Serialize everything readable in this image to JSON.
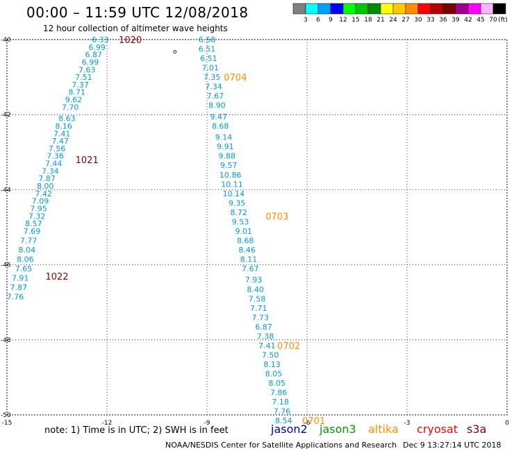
{
  "header": {
    "title": "00:00 – 11:59 UTC 12/08/2018",
    "subtitle": "12 hour collection of altimeter wave heights"
  },
  "legend": {
    "unit": "(ft)",
    "bins": [
      {
        "label": "3",
        "color": "#808080"
      },
      {
        "label": "6",
        "color": "#00ffff"
      },
      {
        "label": "9",
        "color": "#00a0ff"
      },
      {
        "label": "12",
        "color": "#0000ff"
      },
      {
        "label": "15",
        "color": "#00ff00"
      },
      {
        "label": "18",
        "color": "#00c800"
      },
      {
        "label": "21",
        "color": "#008c00"
      },
      {
        "label": "24",
        "color": "#ffff00"
      },
      {
        "label": "27",
        "color": "#ffc800"
      },
      {
        "label": "30",
        "color": "#ff8c00"
      },
      {
        "label": "33",
        "color": "#ff0000"
      },
      {
        "label": "36",
        "color": "#b40000"
      },
      {
        "label": "39",
        "color": "#780000"
      },
      {
        "label": "42",
        "color": "#a0008c"
      },
      {
        "label": "45",
        "color": "#ff00ff"
      },
      {
        "label": "70",
        "color": "#ffb4ff"
      },
      {
        "label": "",
        "color": "#000000"
      }
    ]
  },
  "axes": {
    "lon_ticks": [
      {
        "value": -15,
        "label": "-15"
      },
      {
        "value": -12,
        "label": "-12"
      },
      {
        "value": -9,
        "label": "-9"
      },
      {
        "value": -6,
        "label": "-6"
      },
      {
        "value": -3,
        "label": "-3"
      },
      {
        "value": 0,
        "label": "0"
      }
    ],
    "lat_ticks": [
      {
        "value": -40,
        "label": "-40"
      },
      {
        "value": -42,
        "label": "-42"
      },
      {
        "value": -44,
        "label": "-44"
      },
      {
        "value": -46,
        "label": "-46"
      },
      {
        "value": -48,
        "label": "-48"
      },
      {
        "value": -50,
        "label": "-50"
      }
    ],
    "lon_range": [
      -15,
      0
    ],
    "lat_range": [
      -40,
      -50
    ],
    "grid": true
  },
  "chart_data": {
    "type": "scatter",
    "x_range": [
      -15,
      0
    ],
    "y_range": [
      -50,
      -40
    ],
    "tracks": [
      {
        "color": "#0099e6",
        "points": [
          {
            "x": -12.2,
            "y": -40.0,
            "v": "6.33"
          },
          {
            "x": -12.3,
            "y": -40.2,
            "v": "6.99"
          },
          {
            "x": -12.4,
            "y": -40.4,
            "v": "6.87"
          },
          {
            "x": -12.5,
            "y": -40.6,
            "v": "6.99"
          },
          {
            "x": -12.6,
            "y": -40.8,
            "v": "7.63"
          },
          {
            "x": -12.7,
            "y": -41.0,
            "v": "7.51"
          },
          {
            "x": -12.8,
            "y": -41.2,
            "v": "7.37"
          },
          {
            "x": -12.9,
            "y": -41.4,
            "v": "8.71"
          },
          {
            "x": -13.0,
            "y": -41.6,
            "v": "9.62"
          },
          {
            "x": -13.1,
            "y": -41.8,
            "v": "7.70"
          },
          {
            "x": -13.2,
            "y": -42.1,
            "v": "8.63"
          },
          {
            "x": -13.3,
            "y": -42.3,
            "v": "8.16"
          },
          {
            "x": -13.35,
            "y": -42.5,
            "v": "7.41"
          },
          {
            "x": -13.4,
            "y": -42.7,
            "v": "7.47"
          },
          {
            "x": -13.5,
            "y": -42.9,
            "v": "7.56"
          },
          {
            "x": -13.55,
            "y": -43.1,
            "v": "7.36"
          },
          {
            "x": -13.6,
            "y": -43.3,
            "v": "7.44"
          },
          {
            "x": -13.7,
            "y": -43.5,
            "v": "7.34"
          },
          {
            "x": -13.8,
            "y": -43.7,
            "v": "7.87"
          },
          {
            "x": -13.85,
            "y": -43.9,
            "v": "8.00"
          },
          {
            "x": -13.9,
            "y": -44.1,
            "v": "7.42"
          },
          {
            "x": -14.0,
            "y": -44.3,
            "v": "7.09"
          },
          {
            "x": -14.05,
            "y": -44.5,
            "v": "7.95"
          },
          {
            "x": -14.1,
            "y": -44.7,
            "v": "7.32"
          },
          {
            "x": -14.2,
            "y": -44.9,
            "v": "8.57"
          },
          {
            "x": -14.25,
            "y": -45.1,
            "v": "7.69"
          },
          {
            "x": -14.35,
            "y": -45.35,
            "v": "7.77"
          },
          {
            "x": -14.4,
            "y": -45.6,
            "v": "8.04"
          },
          {
            "x": -14.45,
            "y": -45.85,
            "v": "8.06"
          },
          {
            "x": -14.5,
            "y": -46.1,
            "v": "7.65"
          },
          {
            "x": -14.6,
            "y": -46.35,
            "v": "7.91"
          },
          {
            "x": -14.65,
            "y": -46.6,
            "v": "7.87"
          },
          {
            "x": -14.75,
            "y": -46.85,
            "v": "7.76"
          }
        ]
      },
      {
        "color": "#0099e6",
        "points": [
          {
            "x": -9.0,
            "y": -40.0,
            "v": "6.58"
          },
          {
            "x": -9.0,
            "y": -40.25,
            "v": "6.51"
          },
          {
            "x": -8.95,
            "y": -40.5,
            "v": "6.51"
          },
          {
            "x": -8.9,
            "y": -40.75,
            "v": "7.01"
          },
          {
            "x": -8.85,
            "y": -41.0,
            "v": "7.35"
          },
          {
            "x": -8.8,
            "y": -41.25,
            "v": "7.34"
          },
          {
            "x": -8.75,
            "y": -41.5,
            "v": "7.67"
          },
          {
            "x": -8.7,
            "y": -41.75,
            "v": "8.90"
          },
          {
            "x": -8.65,
            "y": -42.05,
            "v": "9.47"
          },
          {
            "x": -8.6,
            "y": -42.3,
            "v": "8.68"
          },
          {
            "x": -8.5,
            "y": -42.6,
            "v": "9.14"
          },
          {
            "x": -8.45,
            "y": -42.85,
            "v": "9.91"
          },
          {
            "x": -8.4,
            "y": -43.1,
            "v": "9.88"
          },
          {
            "x": -8.35,
            "y": -43.35,
            "v": "9.57"
          },
          {
            "x": -8.3,
            "y": -43.6,
            "v": "10.86"
          },
          {
            "x": -8.25,
            "y": -43.85,
            "v": "10.11"
          },
          {
            "x": -8.2,
            "y": -44.1,
            "v": "10.14"
          },
          {
            "x": -8.1,
            "y": -44.35,
            "v": "9.35"
          },
          {
            "x": -8.05,
            "y": -44.6,
            "v": "8.72"
          },
          {
            "x": -8.0,
            "y": -44.85,
            "v": "9.53"
          },
          {
            "x": -7.9,
            "y": -45.1,
            "v": "9.01"
          },
          {
            "x": -7.85,
            "y": -45.35,
            "v": "8.68"
          },
          {
            "x": -7.8,
            "y": -45.6,
            "v": "8.46"
          },
          {
            "x": -7.75,
            "y": -45.85,
            "v": "8.11"
          },
          {
            "x": -7.7,
            "y": -46.1,
            "v": "7.67"
          },
          {
            "x": -7.6,
            "y": -46.4,
            "v": "7.93"
          },
          {
            "x": -7.55,
            "y": -46.65,
            "v": "8.40"
          },
          {
            "x": -7.5,
            "y": -46.9,
            "v": "7.58"
          },
          {
            "x": -7.45,
            "y": -47.15,
            "v": "7.71"
          },
          {
            "x": -7.4,
            "y": -47.4,
            "v": "7.73"
          },
          {
            "x": -7.3,
            "y": -47.65,
            "v": "6.87"
          },
          {
            "x": -7.25,
            "y": -47.9,
            "v": "7.38"
          },
          {
            "x": -7.2,
            "y": -48.15,
            "v": "7.41"
          },
          {
            "x": -7.1,
            "y": -48.4,
            "v": "7.50"
          },
          {
            "x": -7.05,
            "y": -48.65,
            "v": "8.13"
          },
          {
            "x": -7.0,
            "y": -48.9,
            "v": "8.05"
          },
          {
            "x": -6.9,
            "y": -49.15,
            "v": "8.05"
          },
          {
            "x": -6.85,
            "y": -49.4,
            "v": "7.86"
          },
          {
            "x": -6.8,
            "y": -49.65,
            "v": "7.18"
          },
          {
            "x": -6.75,
            "y": -49.9,
            "v": "7.76"
          },
          {
            "x": -6.7,
            "y": -50.15,
            "v": "8.54"
          }
        ]
      }
    ],
    "time_labels": [
      {
        "x": -11.3,
        "y": -40.0,
        "label": "1020",
        "color": "#8b0000"
      },
      {
        "x": -12.6,
        "y": -43.2,
        "label": "1021",
        "color": "#8b0000"
      },
      {
        "x": -13.5,
        "y": -46.3,
        "label": "1022",
        "color": "#8b0000"
      },
      {
        "x": -8.15,
        "y": -41.0,
        "label": "0704",
        "color": "#ff8c00"
      },
      {
        "x": -6.9,
        "y": -44.7,
        "label": "0703",
        "color": "#ff8c00"
      },
      {
        "x": -6.55,
        "y": -48.15,
        "label": "0702",
        "color": "#ff8c00"
      },
      {
        "x": -5.8,
        "y": -50.15,
        "label": "0701",
        "color": "#ff8c00"
      }
    ]
  },
  "footer": {
    "note": "note:  1) Time is in UTC;  2) SWH is in feet",
    "satellites": [
      {
        "name": "jason2",
        "color": "#0000cc"
      },
      {
        "name": "jason3",
        "color": "#009900"
      },
      {
        "name": "altika",
        "color": "#ff8c00"
      },
      {
        "name": "cryosat",
        "color": "#ff0000"
      },
      {
        "name": "s3a",
        "color": "#8b0000"
      }
    ],
    "credit": "NOAA/NESDIS Center for Satellite Applications and Research",
    "timestamp": "Dec  9 13:27:14 UTC 2018"
  }
}
